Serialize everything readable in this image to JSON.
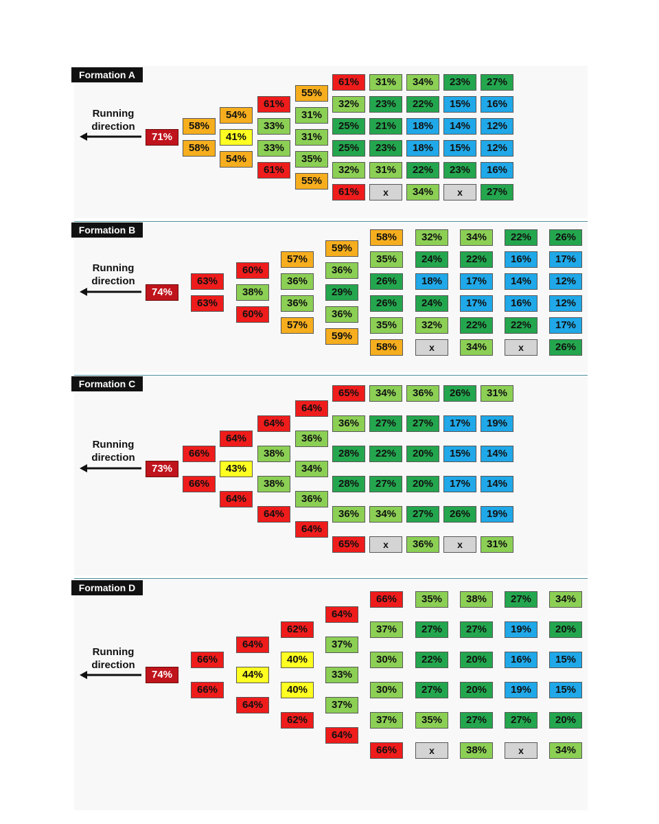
{
  "direction_label": [
    "Running",
    "direction"
  ],
  "colors": {
    "darkred": "#c0141c",
    "red": "#ef1c1c",
    "orange": "#f6ae1e",
    "yellow": "#ffff22",
    "lightgreen": "#8ccf55",
    "green": "#24a64e",
    "blue": "#20a8e8",
    "gray": "#d4d4d4"
  },
  "formations": [
    {
      "title": "Formation A",
      "columns": [
        [
          {
            "v": "71%",
            "c": "darkred"
          }
        ],
        [
          {
            "v": "58%",
            "c": "orange"
          },
          {
            "v": "58%",
            "c": "orange"
          }
        ],
        [
          {
            "v": "54%",
            "c": "orange"
          },
          {
            "v": "41%",
            "c": "yellow"
          },
          {
            "v": "54%",
            "c": "orange"
          }
        ],
        [
          {
            "v": "61%",
            "c": "red"
          },
          {
            "v": "33%",
            "c": "lightgreen"
          },
          {
            "v": "33%",
            "c": "lightgreen"
          },
          {
            "v": "61%",
            "c": "red"
          }
        ],
        [
          {
            "v": "55%",
            "c": "orange"
          },
          {
            "v": "31%",
            "c": "lightgreen"
          },
          {
            "v": "31%",
            "c": "lightgreen"
          },
          {
            "v": "35%",
            "c": "lightgreen"
          },
          {
            "v": "55%",
            "c": "orange"
          }
        ],
        [
          {
            "v": "61%",
            "c": "red"
          },
          {
            "v": "32%",
            "c": "lightgreen"
          },
          {
            "v": "25%",
            "c": "green"
          },
          {
            "v": "25%",
            "c": "green"
          },
          {
            "v": "32%",
            "c": "lightgreen"
          },
          {
            "v": "61%",
            "c": "red"
          }
        ],
        [
          {
            "v": "31%",
            "c": "lightgreen"
          },
          {
            "v": "23%",
            "c": "green"
          },
          {
            "v": "21%",
            "c": "green"
          },
          {
            "v": "23%",
            "c": "green"
          },
          {
            "v": "31%",
            "c": "lightgreen"
          },
          {
            "v": "x",
            "c": "gray"
          }
        ],
        [
          {
            "v": "34%",
            "c": "lightgreen"
          },
          {
            "v": "22%",
            "c": "green"
          },
          {
            "v": "18%",
            "c": "blue"
          },
          {
            "v": "18%",
            "c": "blue"
          },
          {
            "v": "22%",
            "c": "green"
          },
          {
            "v": "34%",
            "c": "lightgreen"
          }
        ],
        [
          {
            "v": "23%",
            "c": "green"
          },
          {
            "v": "15%",
            "c": "blue"
          },
          {
            "v": "14%",
            "c": "blue"
          },
          {
            "v": "15%",
            "c": "blue"
          },
          {
            "v": "23%",
            "c": "green"
          },
          {
            "v": "x",
            "c": "gray"
          }
        ],
        [
          {
            "v": "27%",
            "c": "green"
          },
          {
            "v": "16%",
            "c": "blue"
          },
          {
            "v": "12%",
            "c": "blue"
          },
          {
            "v": "12%",
            "c": "blue"
          },
          {
            "v": "16%",
            "c": "blue"
          },
          {
            "v": "27%",
            "c": "green"
          }
        ]
      ]
    },
    {
      "title": "Formation B",
      "columns": [
        [
          {
            "v": "74%",
            "c": "darkred"
          }
        ],
        [
          {
            "v": "63%",
            "c": "red"
          },
          {
            "v": "63%",
            "c": "red"
          }
        ],
        [
          {
            "v": "60%",
            "c": "red"
          },
          {
            "v": "38%",
            "c": "lightgreen"
          },
          {
            "v": "60%",
            "c": "red"
          }
        ],
        [
          {
            "v": "57%",
            "c": "orange"
          },
          {
            "v": "36%",
            "c": "lightgreen"
          },
          {
            "v": "36%",
            "c": "lightgreen"
          },
          {
            "v": "57%",
            "c": "orange"
          }
        ],
        [
          {
            "v": "59%",
            "c": "orange"
          },
          {
            "v": "36%",
            "c": "lightgreen"
          },
          {
            "v": "29%",
            "c": "green"
          },
          {
            "v": "36%",
            "c": "lightgreen"
          },
          {
            "v": "59%",
            "c": "orange"
          }
        ],
        [
          {
            "v": "58%",
            "c": "orange"
          },
          {
            "v": "35%",
            "c": "lightgreen"
          },
          {
            "v": "26%",
            "c": "green"
          },
          {
            "v": "26%",
            "c": "green"
          },
          {
            "v": "35%",
            "c": "lightgreen"
          },
          {
            "v": "58%",
            "c": "orange"
          }
        ],
        [
          {
            "v": "32%",
            "c": "lightgreen"
          },
          {
            "v": "24%",
            "c": "green"
          },
          {
            "v": "18%",
            "c": "blue"
          },
          {
            "v": "24%",
            "c": "green"
          },
          {
            "v": "32%",
            "c": "lightgreen"
          },
          {
            "v": "x",
            "c": "gray"
          }
        ],
        [
          {
            "v": "34%",
            "c": "lightgreen"
          },
          {
            "v": "22%",
            "c": "green"
          },
          {
            "v": "17%",
            "c": "blue"
          },
          {
            "v": "17%",
            "c": "blue"
          },
          {
            "v": "22%",
            "c": "green"
          },
          {
            "v": "34%",
            "c": "lightgreen"
          }
        ],
        [
          {
            "v": "22%",
            "c": "green"
          },
          {
            "v": "16%",
            "c": "blue"
          },
          {
            "v": "14%",
            "c": "blue"
          },
          {
            "v": "16%",
            "c": "blue"
          },
          {
            "v": "22%",
            "c": "green"
          },
          {
            "v": "x",
            "c": "gray"
          }
        ],
        [
          {
            "v": "26%",
            "c": "green"
          },
          {
            "v": "17%",
            "c": "blue"
          },
          {
            "v": "12%",
            "c": "blue"
          },
          {
            "v": "12%",
            "c": "blue"
          },
          {
            "v": "17%",
            "c": "blue"
          },
          {
            "v": "26%",
            "c": "green"
          }
        ]
      ]
    },
    {
      "title": "Formation C",
      "columns": [
        [
          {
            "v": "73%",
            "c": "darkred"
          }
        ],
        [
          {
            "v": "66%",
            "c": "red"
          },
          {
            "v": "66%",
            "c": "red"
          }
        ],
        [
          {
            "v": "64%",
            "c": "red"
          },
          {
            "v": "43%",
            "c": "yellow"
          },
          {
            "v": "64%",
            "c": "red"
          }
        ],
        [
          {
            "v": "64%",
            "c": "red"
          },
          {
            "v": "38%",
            "c": "lightgreen"
          },
          {
            "v": "38%",
            "c": "lightgreen"
          },
          {
            "v": "64%",
            "c": "red"
          }
        ],
        [
          {
            "v": "64%",
            "c": "red"
          },
          {
            "v": "36%",
            "c": "lightgreen"
          },
          {
            "v": "34%",
            "c": "lightgreen"
          },
          {
            "v": "36%",
            "c": "lightgreen"
          },
          {
            "v": "64%",
            "c": "red"
          }
        ],
        [
          {
            "v": "65%",
            "c": "red"
          },
          {
            "v": "36%",
            "c": "lightgreen"
          },
          {
            "v": "28%",
            "c": "green"
          },
          {
            "v": "28%",
            "c": "green"
          },
          {
            "v": "36%",
            "c": "lightgreen"
          },
          {
            "v": "65%",
            "c": "red"
          }
        ],
        [
          {
            "v": "34%",
            "c": "lightgreen"
          },
          {
            "v": "27%",
            "c": "green"
          },
          {
            "v": "22%",
            "c": "green"
          },
          {
            "v": "27%",
            "c": "green"
          },
          {
            "v": "34%",
            "c": "lightgreen"
          },
          {
            "v": "x",
            "c": "gray"
          }
        ],
        [
          {
            "v": "36%",
            "c": "lightgreen"
          },
          {
            "v": "27%",
            "c": "green"
          },
          {
            "v": "20%",
            "c": "green"
          },
          {
            "v": "20%",
            "c": "green"
          },
          {
            "v": "27%",
            "c": "green"
          },
          {
            "v": "36%",
            "c": "lightgreen"
          }
        ],
        [
          {
            "v": "26%",
            "c": "green"
          },
          {
            "v": "17%",
            "c": "blue"
          },
          {
            "v": "15%",
            "c": "blue"
          },
          {
            "v": "17%",
            "c": "blue"
          },
          {
            "v": "26%",
            "c": "green"
          },
          {
            "v": "x",
            "c": "gray"
          }
        ],
        [
          {
            "v": "31%",
            "c": "lightgreen"
          },
          {
            "v": "19%",
            "c": "blue"
          },
          {
            "v": "14%",
            "c": "blue"
          },
          {
            "v": "14%",
            "c": "blue"
          },
          {
            "v": "19%",
            "c": "blue"
          },
          {
            "v": "31%",
            "c": "lightgreen"
          }
        ]
      ]
    },
    {
      "title": "Formation D",
      "columns": [
        [
          {
            "v": "74%",
            "c": "darkred"
          }
        ],
        [
          {
            "v": "66%",
            "c": "red"
          },
          {
            "v": "66%",
            "c": "red"
          }
        ],
        [
          {
            "v": "64%",
            "c": "red"
          },
          {
            "v": "44%",
            "c": "yellow"
          },
          {
            "v": "64%",
            "c": "red"
          }
        ],
        [
          {
            "v": "62%",
            "c": "red"
          },
          {
            "v": "40%",
            "c": "yellow"
          },
          {
            "v": "40%",
            "c": "yellow"
          },
          {
            "v": "62%",
            "c": "red"
          }
        ],
        [
          {
            "v": "64%",
            "c": "red"
          },
          {
            "v": "37%",
            "c": "lightgreen"
          },
          {
            "v": "33%",
            "c": "lightgreen"
          },
          {
            "v": "37%",
            "c": "lightgreen"
          },
          {
            "v": "64%",
            "c": "red"
          }
        ],
        [
          {
            "v": "66%",
            "c": "red"
          },
          {
            "v": "37%",
            "c": "lightgreen"
          },
          {
            "v": "30%",
            "c": "lightgreen"
          },
          {
            "v": "30%",
            "c": "lightgreen"
          },
          {
            "v": "37%",
            "c": "lightgreen"
          },
          {
            "v": "66%",
            "c": "red"
          }
        ],
        [
          {
            "v": "35%",
            "c": "lightgreen"
          },
          {
            "v": "27%",
            "c": "green"
          },
          {
            "v": "22%",
            "c": "green"
          },
          {
            "v": "27%",
            "c": "green"
          },
          {
            "v": "35%",
            "c": "lightgreen"
          },
          {
            "v": "x",
            "c": "gray"
          }
        ],
        [
          {
            "v": "38%",
            "c": "lightgreen"
          },
          {
            "v": "27%",
            "c": "green"
          },
          {
            "v": "20%",
            "c": "green"
          },
          {
            "v": "20%",
            "c": "green"
          },
          {
            "v": "27%",
            "c": "green"
          },
          {
            "v": "38%",
            "c": "lightgreen"
          }
        ],
        [
          {
            "v": "27%",
            "c": "green"
          },
          {
            "v": "19%",
            "c": "blue"
          },
          {
            "v": "16%",
            "c": "blue"
          },
          {
            "v": "19%",
            "c": "blue"
          },
          {
            "v": "27%",
            "c": "green"
          },
          {
            "v": "x",
            "c": "gray"
          }
        ],
        [
          {
            "v": "34%",
            "c": "lightgreen"
          },
          {
            "v": "20%",
            "c": "green"
          },
          {
            "v": "15%",
            "c": "blue"
          },
          {
            "v": "15%",
            "c": "blue"
          },
          {
            "v": "20%",
            "c": "green"
          },
          {
            "v": "34%",
            "c": "lightgreen"
          }
        ]
      ]
    }
  ]
}
